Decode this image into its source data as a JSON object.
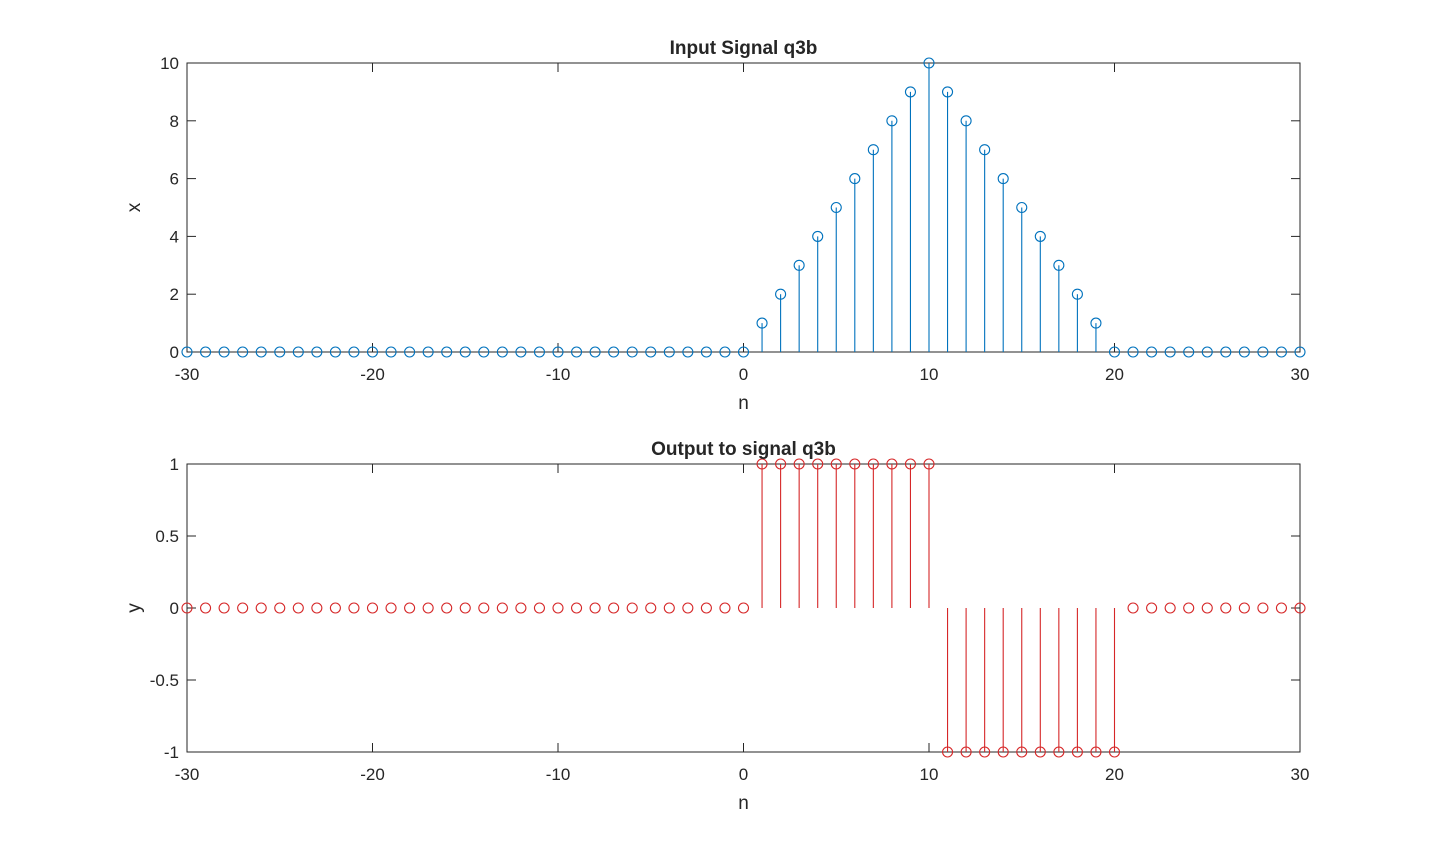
{
  "chart_data": [
    {
      "type": "stem",
      "title": "Input Signal q3b",
      "xlabel": "n",
      "ylabel": "x",
      "xlim": [
        -30,
        30
      ],
      "ylim": [
        0,
        10
      ],
      "xticks": [
        -30,
        -20,
        -10,
        0,
        10,
        20,
        30
      ],
      "yticks": [
        0,
        2,
        4,
        6,
        8,
        10
      ],
      "ytick_labels": [
        "0",
        "2",
        "4",
        "6",
        "8",
        "10"
      ],
      "color": "#0072BD",
      "marker": "circle",
      "grid": false,
      "series": [
        {
          "x": [
            -30,
            -29,
            -28,
            -27,
            -26,
            -25,
            -24,
            -23,
            -22,
            -21,
            -20,
            -19,
            -18,
            -17,
            -16,
            -15,
            -14,
            -13,
            -12,
            -11,
            -10,
            -9,
            -8,
            -7,
            -6,
            -5,
            -4,
            -3,
            -2,
            -1,
            0,
            1,
            2,
            3,
            4,
            5,
            6,
            7,
            8,
            9,
            10,
            11,
            12,
            13,
            14,
            15,
            16,
            17,
            18,
            19,
            20,
            21,
            22,
            23,
            24,
            25,
            26,
            27,
            28,
            29,
            30
          ],
          "y": [
            0,
            0,
            0,
            0,
            0,
            0,
            0,
            0,
            0,
            0,
            0,
            0,
            0,
            0,
            0,
            0,
            0,
            0,
            0,
            0,
            0,
            0,
            0,
            0,
            0,
            0,
            0,
            0,
            0,
            0,
            0,
            1,
            2,
            3,
            4,
            5,
            6,
            7,
            8,
            9,
            10,
            9,
            8,
            7,
            6,
            5,
            4,
            3,
            2,
            1,
            0,
            0,
            0,
            0,
            0,
            0,
            0,
            0,
            0,
            0,
            0
          ]
        }
      ]
    },
    {
      "type": "stem",
      "title": "Output to signal q3b",
      "xlabel": "n",
      "ylabel": "y",
      "xlim": [
        -30,
        30
      ],
      "ylim": [
        -1,
        1
      ],
      "xticks": [
        -30,
        -20,
        -10,
        0,
        10,
        20,
        30
      ],
      "yticks": [
        -1,
        -0.5,
        0,
        0.5,
        1
      ],
      "ytick_labels": [
        "-1",
        "-0.5",
        "0",
        "0.5",
        "1"
      ],
      "color": "#D62728",
      "marker": "circle",
      "grid": false,
      "series": [
        {
          "x": [
            -30,
            -29,
            -28,
            -27,
            -26,
            -25,
            -24,
            -23,
            -22,
            -21,
            -20,
            -19,
            -18,
            -17,
            -16,
            -15,
            -14,
            -13,
            -12,
            -11,
            -10,
            -9,
            -8,
            -7,
            -6,
            -5,
            -4,
            -3,
            -2,
            -1,
            0,
            1,
            2,
            3,
            4,
            5,
            6,
            7,
            8,
            9,
            10,
            11,
            12,
            13,
            14,
            15,
            16,
            17,
            18,
            19,
            20,
            21,
            22,
            23,
            24,
            25,
            26,
            27,
            28,
            29,
            30
          ],
          "y": [
            0,
            0,
            0,
            0,
            0,
            0,
            0,
            0,
            0,
            0,
            0,
            0,
            0,
            0,
            0,
            0,
            0,
            0,
            0,
            0,
            0,
            0,
            0,
            0,
            0,
            0,
            0,
            0,
            0,
            0,
            0,
            1,
            1,
            1,
            1,
            1,
            1,
            1,
            1,
            1,
            1,
            -1,
            -1,
            -1,
            -1,
            -1,
            -1,
            -1,
            -1,
            -1,
            -1,
            0,
            0,
            0,
            0,
            0,
            0,
            0,
            0,
            0,
            0
          ]
        }
      ]
    }
  ]
}
